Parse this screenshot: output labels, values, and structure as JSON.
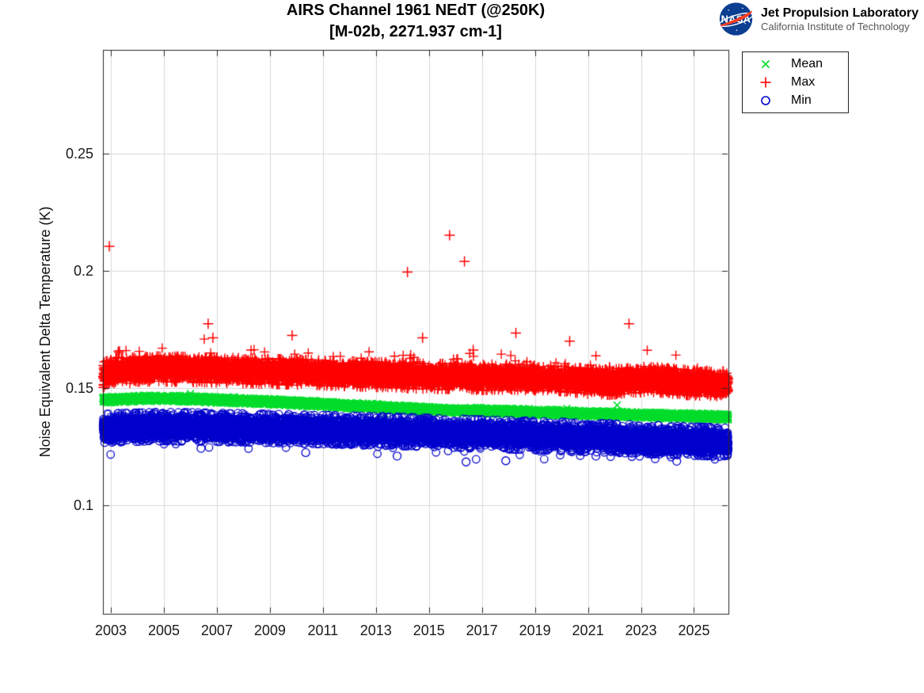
{
  "logo": {
    "agency": "NASA",
    "org_name": "Jet Propulsion Laboratory",
    "org_sub": "California Institute of Technology",
    "meatball_blue": "#0b3d91",
    "meatball_red": "#fc3d21"
  },
  "legend": [
    {
      "label": "Mean",
      "marker": "x",
      "color": "#00dd2c"
    },
    {
      "label": "Max",
      "marker": "+",
      "color": "#ff0000"
    },
    {
      "label": "Min",
      "marker": "o",
      "color": "#0000cd"
    }
  ],
  "chart_data": {
    "type": "scatter",
    "title": "AIRS Channel 1961 NEdT (@250K)",
    "subtitle": "[M-02b, 2271.937 cm-1]",
    "xlabel": "",
    "ylabel": "Noise Equivalent Delta Temperature (K)",
    "xlim": [
      2002.7,
      2026.3
    ],
    "ylim": [
      0.0537,
      0.2943
    ],
    "xticks": [
      2003,
      2005,
      2007,
      2009,
      2011,
      2013,
      2015,
      2017,
      2019,
      2021,
      2023,
      2025
    ],
    "xtick_labels": [
      "2003",
      "2005",
      "2007",
      "2009",
      "2011",
      "2013",
      "2015",
      "2017",
      "2019",
      "2021",
      "2023",
      "2025"
    ],
    "yticks": [
      0.1,
      0.15,
      0.2,
      0.25
    ],
    "ytick_labels": [
      "0.1",
      "0.15",
      "0.2",
      "0.25"
    ],
    "grid": true,
    "grid_color": "#d9d9d9",
    "axis_color": "#262626",
    "legend_position": "outside-top-right",
    "sampling_per_year": 365,
    "series": [
      {
        "name": "Mean",
        "marker": "x",
        "color": "#00dd2c",
        "noise_sigma": 0.0006,
        "trend": [
          [
            2002.7,
            0.145
          ],
          [
            2003.2,
            0.1452
          ],
          [
            2004.3,
            0.1456
          ],
          [
            2005.5,
            0.1455
          ],
          [
            2007,
            0.145
          ],
          [
            2009,
            0.1442
          ],
          [
            2011,
            0.1431
          ],
          [
            2013,
            0.142
          ],
          [
            2015,
            0.1408
          ],
          [
            2016.5,
            0.1404
          ],
          [
            2018,
            0.14
          ],
          [
            2019.5,
            0.1396
          ],
          [
            2021,
            0.1391
          ],
          [
            2022.5,
            0.1387
          ],
          [
            2024,
            0.1383
          ],
          [
            2025,
            0.138
          ],
          [
            2026.3,
            0.1377
          ]
        ],
        "outliers": [
          [
            2006.0,
            0.1476
          ],
          [
            2007.65,
            0.1463
          ],
          [
            2013.35,
            0.139
          ],
          [
            2020.2,
            0.1413
          ],
          [
            2022.1,
            0.1427
          ]
        ]
      },
      {
        "name": "Max",
        "marker": "+",
        "color": "#ff0000",
        "noise_sigma": 0.0024,
        "spike_prob": 0.013,
        "spike_scale": 0.008,
        "trend": [
          [
            2002.7,
            0.1557
          ],
          [
            2003.2,
            0.1572
          ],
          [
            2004.5,
            0.1582
          ],
          [
            2006,
            0.158
          ],
          [
            2008,
            0.1574
          ],
          [
            2010,
            0.1568
          ],
          [
            2012,
            0.1561
          ],
          [
            2014,
            0.1555
          ],
          [
            2015,
            0.1549
          ],
          [
            2016,
            0.1551
          ],
          [
            2017,
            0.1546
          ],
          [
            2018,
            0.1548
          ],
          [
            2019,
            0.1543
          ],
          [
            2020,
            0.154
          ],
          [
            2021,
            0.1529
          ],
          [
            2021.8,
            0.1525
          ],
          [
            2022.5,
            0.1532
          ],
          [
            2023.3,
            0.1539
          ],
          [
            2024,
            0.1531
          ],
          [
            2024.8,
            0.1523
          ],
          [
            2025.5,
            0.1521
          ],
          [
            2026.3,
            0.1516
          ]
        ],
        "outliers": [
          [
            2002.94,
            0.2105
          ],
          [
            2006.67,
            0.1775
          ],
          [
            2006.85,
            0.1715
          ],
          [
            2009.84,
            0.1725
          ],
          [
            2014.19,
            0.1995
          ],
          [
            2014.31,
            0.164
          ],
          [
            2014.76,
            0.1715
          ],
          [
            2015.78,
            0.2152
          ],
          [
            2016.34,
            0.2041
          ],
          [
            2016.67,
            0.1662
          ],
          [
            2018.28,
            0.1735
          ],
          [
            2020.31,
            0.17
          ],
          [
            2022.55,
            0.1775
          ]
        ]
      },
      {
        "name": "Min",
        "marker": "o",
        "color": "#0000cd",
        "noise_sigma": 0.0027,
        "dip_prob": 0.012,
        "dip_scale": 0.0055,
        "trend": [
          [
            2002.7,
            0.1328
          ],
          [
            2003.5,
            0.1332
          ],
          [
            2005,
            0.1336
          ],
          [
            2007,
            0.1333
          ],
          [
            2009,
            0.1328
          ],
          [
            2011,
            0.1323
          ],
          [
            2013,
            0.1318
          ],
          [
            2015,
            0.1311
          ],
          [
            2017,
            0.1304
          ],
          [
            2019,
            0.1298
          ],
          [
            2021,
            0.129
          ],
          [
            2023,
            0.1282
          ],
          [
            2024.5,
            0.1276
          ],
          [
            2026.3,
            0.1268
          ]
        ],
        "outliers": [
          [
            2006.4,
            0.1243
          ],
          [
            2010.35,
            0.1225
          ],
          [
            2013.8,
            0.121
          ],
          [
            2016.4,
            0.1185
          ],
          [
            2017.9,
            0.119
          ],
          [
            2021.3,
            0.121
          ],
          [
            2024.35,
            0.1188
          ]
        ]
      }
    ]
  }
}
